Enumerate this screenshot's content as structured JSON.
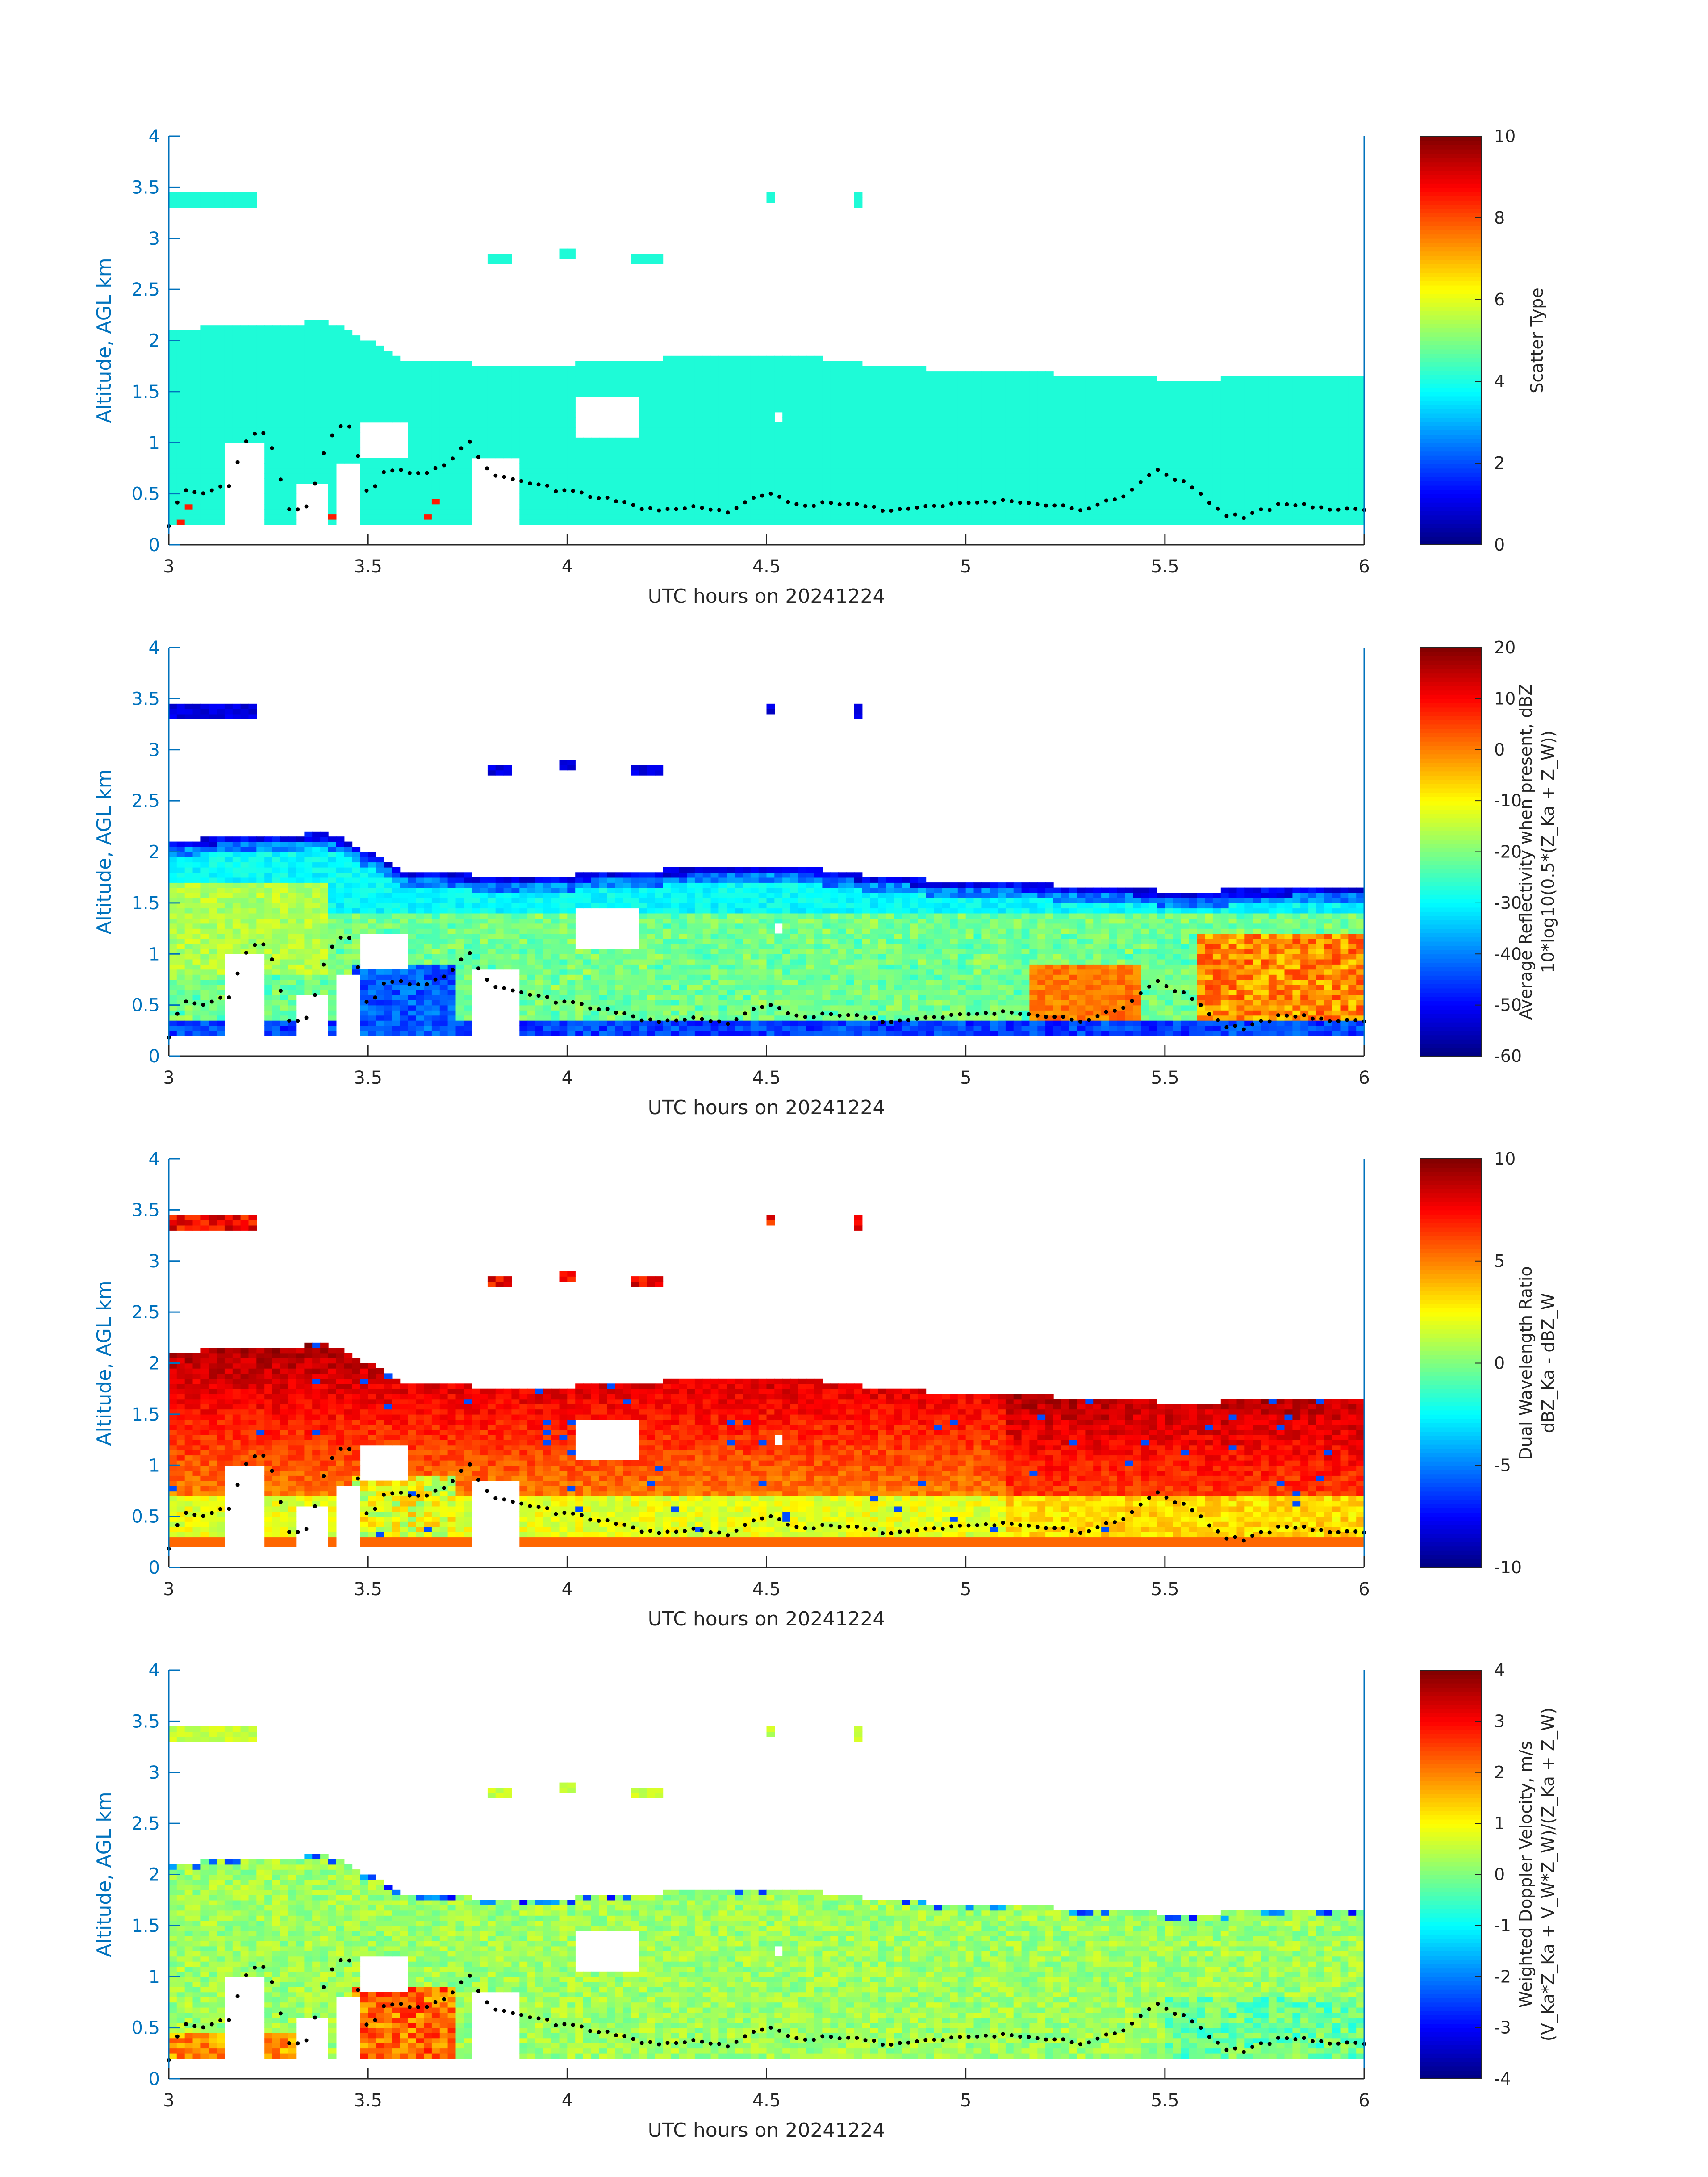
{
  "colors": {
    "axis_blue": "#0072bd",
    "text_dark": "#262626",
    "cyan_type": "#1efbd7",
    "background": "#ffffff"
  },
  "chart_data": [
    {
      "type": "heatmap",
      "title": "",
      "xlabel": "UTC hours on 20241224",
      "ylabel": "Altitude, AGL km",
      "xlim": [
        3,
        6
      ],
      "ylim": [
        0,
        4
      ],
      "xticks": [
        "3",
        "3.5",
        "4",
        "4.5",
        "5",
        "5.5",
        "6"
      ],
      "yticks": [
        "0",
        "0.5",
        "1",
        "1.5",
        "2",
        "2.5",
        "3",
        "3.5",
        "4"
      ],
      "colorbar": {
        "label_lines": [
          "Scatter Type"
        ],
        "ticks": [
          "0",
          "2",
          "4",
          "6",
          "8",
          "10"
        ],
        "range": [
          0,
          10
        ],
        "colormap": "jet"
      },
      "field": "scatter_type"
    },
    {
      "type": "heatmap",
      "title": "",
      "xlabel": "UTC hours on 20241224",
      "ylabel": "Altitude, AGL km",
      "xlim": [
        3,
        6
      ],
      "ylim": [
        0,
        4
      ],
      "xticks": [
        "3",
        "3.5",
        "4",
        "4.5",
        "5",
        "5.5",
        "6"
      ],
      "yticks": [
        "0",
        "0.5",
        "1",
        "1.5",
        "2",
        "2.5",
        "3",
        "3.5",
        "4"
      ],
      "colorbar": {
        "label_lines": [
          "Average Reflectivity when present, dBZ",
          "10*log10(0.5*(Z_Ka + Z_W))"
        ],
        "ticks": [
          "-60",
          "-50",
          "-40",
          "-30",
          "-20",
          "-10",
          "0",
          "10",
          "20"
        ],
        "range": [
          -60,
          20
        ],
        "colormap": "jet"
      },
      "field": "reflectivity"
    },
    {
      "type": "heatmap",
      "title": "",
      "xlabel": "UTC hours on 20241224",
      "ylabel": "Altitude, AGL km",
      "xlim": [
        3,
        6
      ],
      "ylim": [
        0,
        4
      ],
      "xticks": [
        "3",
        "3.5",
        "4",
        "4.5",
        "5",
        "5.5",
        "6"
      ],
      "yticks": [
        "0",
        "0.5",
        "1",
        "1.5",
        "2",
        "2.5",
        "3",
        "3.5",
        "4"
      ],
      "colorbar": {
        "label_lines": [
          "Dual Wavelength Ratio",
          "dBZ_Ka - dBZ_W"
        ],
        "ticks": [
          "-10",
          "-5",
          "0",
          "5",
          "10"
        ],
        "range": [
          -10,
          10
        ],
        "colormap": "jet"
      },
      "field": "dwr"
    },
    {
      "type": "heatmap",
      "title": "",
      "xlabel": "UTC hours on 20241224",
      "ylabel": "Altitude, AGL km",
      "xlim": [
        3,
        6
      ],
      "ylim": [
        0,
        4
      ],
      "xticks": [
        "3",
        "3.5",
        "4",
        "4.5",
        "5",
        "5.5",
        "6"
      ],
      "yticks": [
        "0",
        "0.5",
        "1",
        "1.5",
        "2",
        "2.5",
        "3",
        "3.5",
        "4"
      ],
      "colorbar": {
        "label_lines": [
          "Weighted Doppler Velocity, m/s",
          "(V_Ka*Z_Ka + V_W*Z_W)/(Z_Ka + Z_W)"
        ],
        "ticks": [
          "-4",
          "-3",
          "-2",
          "-1",
          "0",
          "1",
          "2",
          "3",
          "4"
        ],
        "range": [
          -4,
          4
        ],
        "colormap": "jet"
      },
      "field": "velocity"
    }
  ],
  "cloud_structure": {
    "main_layer_top_km": [
      [
        3.0,
        2.1
      ],
      [
        3.1,
        2.13
      ],
      [
        3.2,
        2.16
      ],
      [
        3.4,
        2.18
      ],
      [
        3.5,
        2.0
      ],
      [
        3.6,
        1.8
      ],
      [
        3.8,
        1.77
      ],
      [
        4.0,
        1.77
      ],
      [
        4.2,
        1.82
      ],
      [
        4.4,
        1.85
      ],
      [
        4.6,
        1.85
      ],
      [
        4.8,
        1.75
      ],
      [
        5.0,
        1.7
      ],
      [
        5.2,
        1.68
      ],
      [
        5.5,
        1.62
      ],
      [
        5.8,
        1.63
      ],
      [
        6.0,
        1.67
      ]
    ],
    "main_layer_base_km": 0.18,
    "upper_patches": [
      {
        "x0": 3.0,
        "x1": 3.22,
        "y0": 3.3,
        "y1": 3.45
      },
      {
        "x0": 3.8,
        "x1": 3.85,
        "y0": 2.75,
        "y1": 2.85
      },
      {
        "x0": 3.99,
        "x1": 4.01,
        "y0": 2.8,
        "y1": 2.88
      },
      {
        "x0": 4.16,
        "x1": 4.24,
        "y0": 2.75,
        "y1": 2.87
      },
      {
        "x0": 4.51,
        "x1": 4.52,
        "y0": 3.33,
        "y1": 3.43
      },
      {
        "x0": 4.72,
        "x1": 4.73,
        "y0": 3.3,
        "y1": 3.43
      }
    ],
    "ceilometer_dots_km": [
      [
        3.0,
        0.17
      ],
      [
        3.03,
        0.53
      ],
      [
        3.1,
        0.52
      ],
      [
        3.15,
        0.58
      ],
      [
        3.2,
        1.09
      ],
      [
        3.25,
        1.1
      ],
      [
        3.3,
        0.35
      ],
      [
        3.35,
        0.36
      ],
      [
        3.4,
        1.05
      ],
      [
        3.45,
        1.2
      ],
      [
        3.5,
        0.5
      ],
      [
        3.55,
        0.75
      ],
      [
        3.62,
        0.68
      ],
      [
        3.7,
        0.78
      ],
      [
        3.75,
        1.05
      ],
      [
        3.8,
        0.72
      ],
      [
        3.9,
        0.6
      ],
      [
        4.0,
        0.52
      ],
      [
        4.1,
        0.46
      ],
      [
        4.2,
        0.35
      ],
      [
        4.3,
        0.37
      ],
      [
        4.4,
        0.32
      ],
      [
        4.5,
        0.5
      ],
      [
        4.6,
        0.38
      ],
      [
        4.7,
        0.42
      ],
      [
        4.8,
        0.33
      ],
      [
        4.9,
        0.38
      ],
      [
        5.0,
        0.41
      ],
      [
        5.1,
        0.42
      ],
      [
        5.2,
        0.38
      ],
      [
        5.3,
        0.35
      ],
      [
        5.4,
        0.48
      ],
      [
        5.48,
        0.72
      ],
      [
        5.55,
        0.6
      ],
      [
        5.65,
        0.3
      ],
      [
        5.7,
        0.28
      ],
      [
        5.8,
        0.4
      ],
      [
        5.9,
        0.36
      ],
      [
        6.0,
        0.36
      ]
    ]
  }
}
